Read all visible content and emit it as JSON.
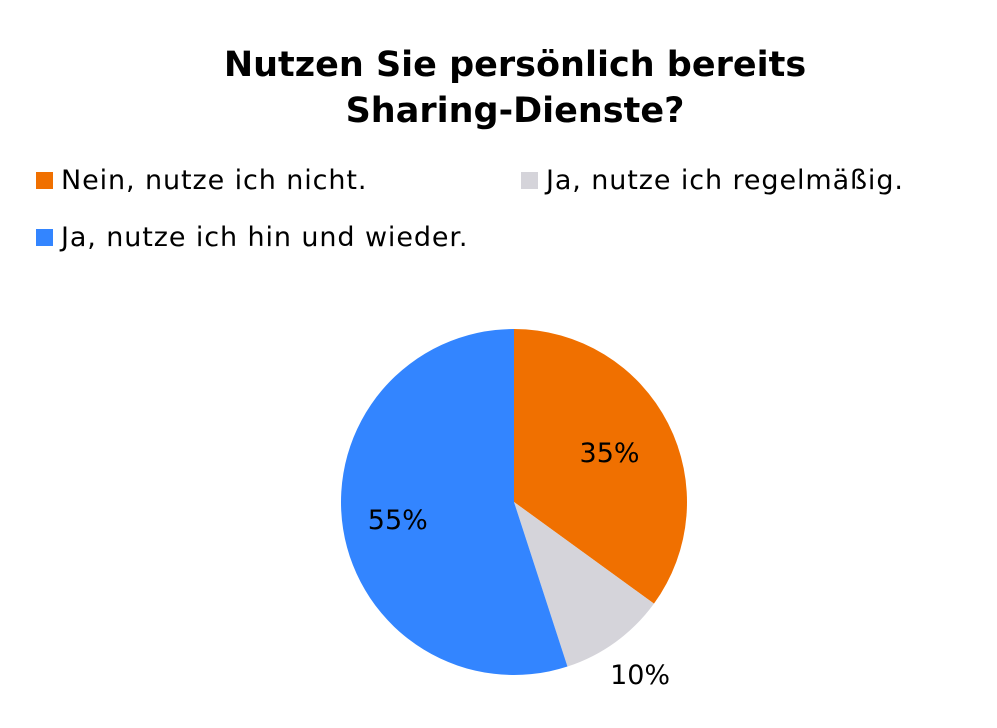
{
  "chart_data": {
    "type": "pie",
    "title_lines": [
      "Nutzen Sie persönlich bereits",
      "Sharing-Dienste?"
    ],
    "legend_position": "top",
    "series": [
      {
        "name": "Nein, nutze ich nicht.",
        "value": 35,
        "label": "35%",
        "color": "#f07000"
      },
      {
        "name": "Ja, nutze ich regelmäßig.",
        "value": 10,
        "label": "10%",
        "color": "#d5d4da"
      },
      {
        "name": "Ja, nutze ich hin und wieder.",
        "value": 55,
        "label": "55%",
        "color": "#3385ff"
      }
    ]
  }
}
